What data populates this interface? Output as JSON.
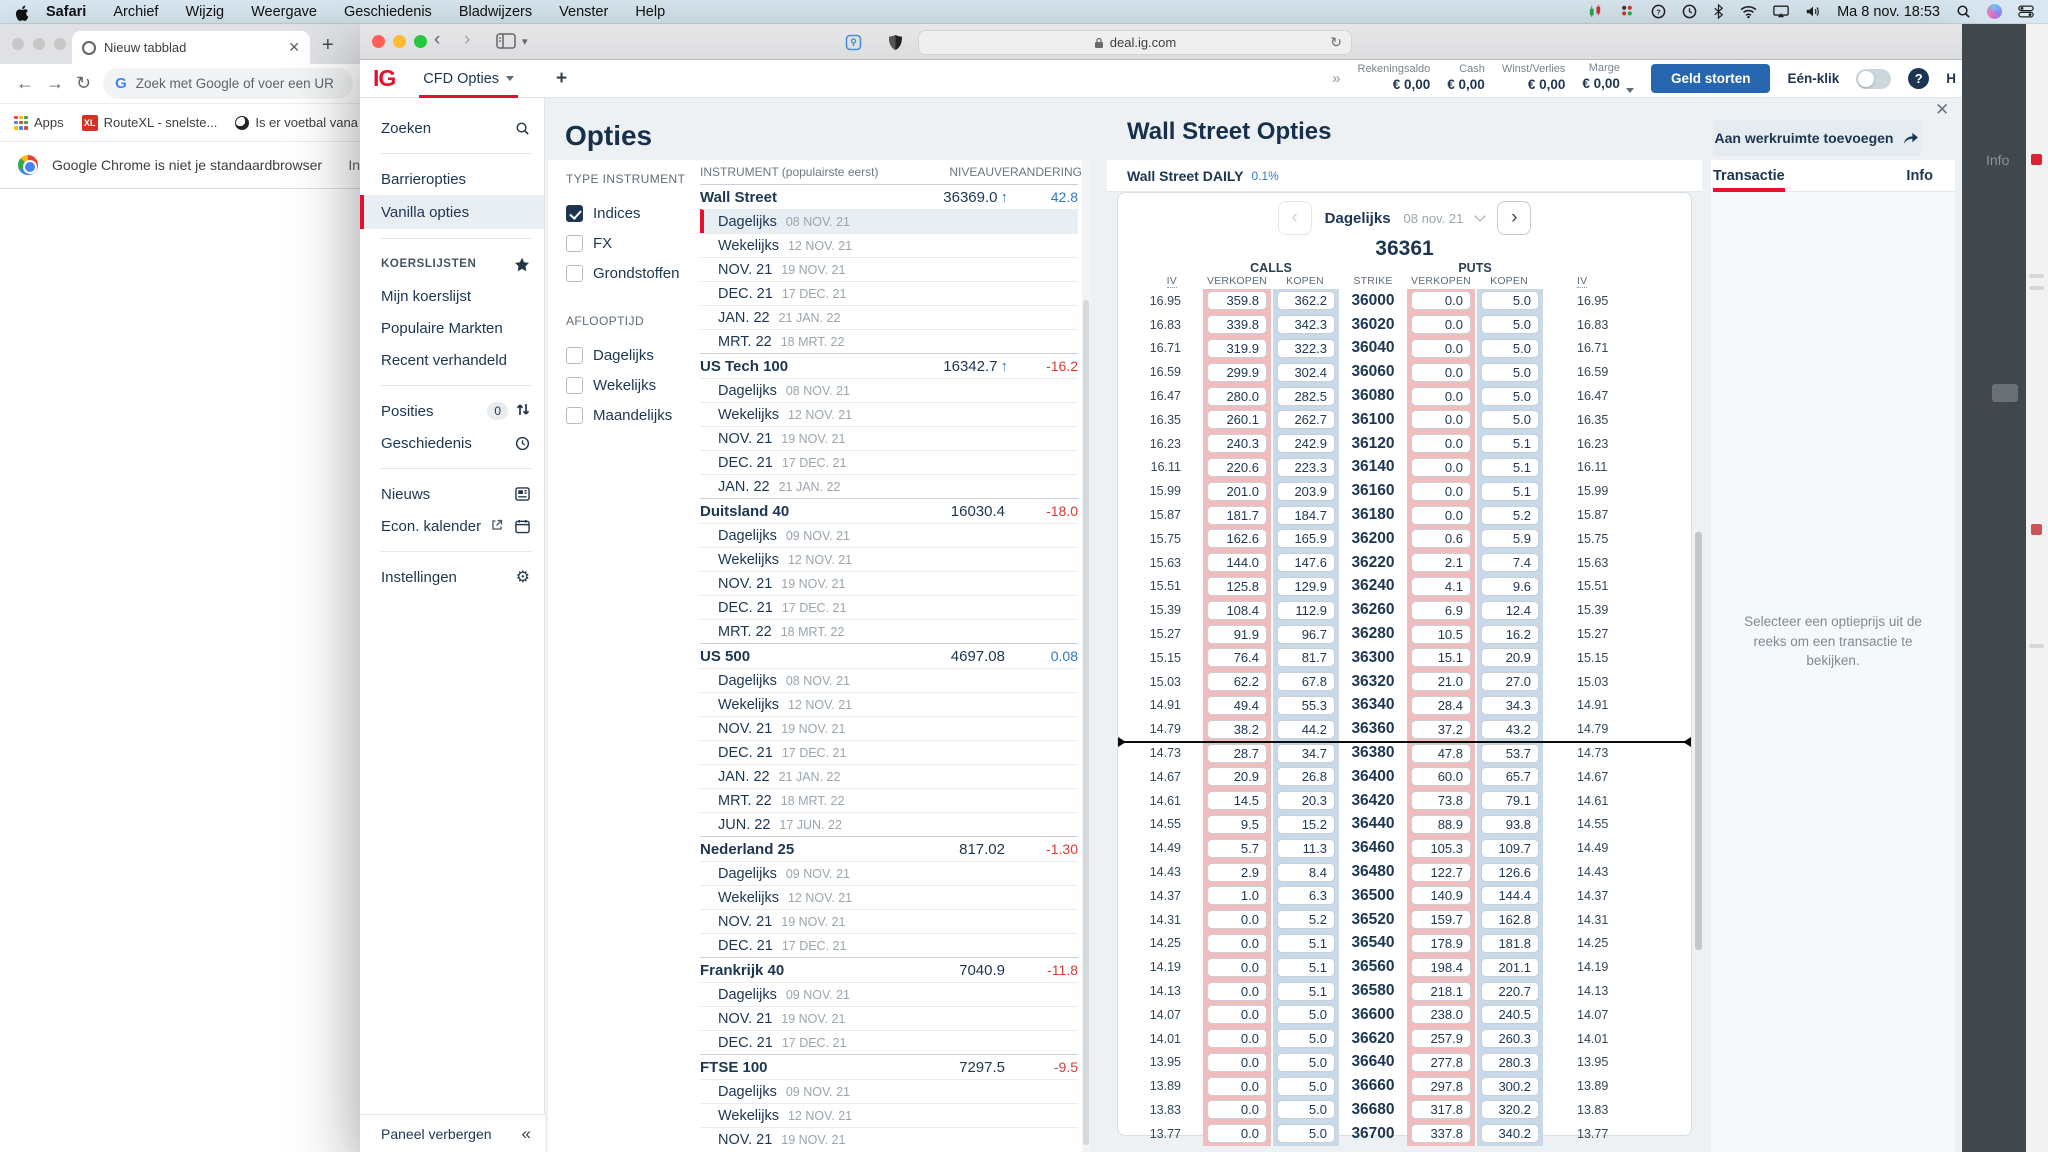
{
  "menu_bar": {
    "items": [
      "Safari",
      "Archief",
      "Wijzig",
      "Weergave",
      "Geschiedenis",
      "Bladwijzers",
      "Venster",
      "Help"
    ],
    "clock": "Ma 8 nov.  18:53"
  },
  "chrome_window": {
    "tab_title": "Nieuw tabblad",
    "address_placeholder": "Zoek met Google of voer een UR",
    "bookmarks": [
      "Apps",
      "RouteXL - snelste...",
      "Is er voetbal vana"
    ],
    "notification": "Google Chrome is niet je standaardbrowser",
    "notification_action": "In"
  },
  "safari": {
    "url": "deal.ig.com"
  },
  "ig_header": {
    "logo": "IG",
    "tab": "CFD Opties",
    "add_tab": "+",
    "overflow": "»",
    "balances": [
      {
        "label": "Rekeningsaldo",
        "value": "€ 0,00"
      },
      {
        "label": "Cash",
        "value": "€ 0,00"
      },
      {
        "label": "Winst/Verlies",
        "value": "€ 0,00"
      },
      {
        "label": "Marge",
        "value": "€ 0,00"
      }
    ],
    "deposit_button": "Geld storten",
    "one_click": "Eén-klik",
    "help": "H"
  },
  "sidebar": {
    "search": "Zoeken",
    "barrier": "Barrieropties",
    "vanilla": "Vanilla opties",
    "koerslijsten": "KOERSLIJSTEN",
    "mijn": "Mijn koerslijst",
    "populaire": "Populaire Markten",
    "recent": "Recent verhandeld",
    "posities": "Posities",
    "posities_count": "0",
    "geschiedenis": "Geschiedenis",
    "nieuws": "Nieuws",
    "econ": "Econ. kalender",
    "instellingen": "Instellingen",
    "paneel": "Paneel verbergen"
  },
  "opties_panel": {
    "title": "Opties",
    "filters": {
      "type_label": "TYPE INSTRUMENT",
      "type_options": [
        {
          "label": "Indices",
          "checked": true
        },
        {
          "label": "FX",
          "checked": false
        },
        {
          "label": "Grondstoffen",
          "checked": false
        }
      ],
      "expiry_label": "AFLOOPTIJD",
      "expiry_options": [
        {
          "label": "Dagelijks",
          "checked": false
        },
        {
          "label": "Wekelijks",
          "checked": false
        },
        {
          "label": "Maandelijks",
          "checked": false
        }
      ]
    },
    "list_headers": {
      "instrument": "INSTRUMENT (populairste eerst)",
      "level": "NIVEAU",
      "change": "VERANDERING"
    },
    "instruments": [
      {
        "name": "Wall Street",
        "level": "36369.0",
        "arrow": true,
        "change": "42.8",
        "dir": "pos",
        "expiries": [
          {
            "label": "Dagelijks",
            "date": "08 NOV. 21",
            "selected": true
          },
          {
            "label": "Wekelijks",
            "date": "12 NOV. 21"
          },
          {
            "label": "NOV. 21",
            "date": "19 NOV. 21"
          },
          {
            "label": "DEC. 21",
            "date": "17 DEC. 21"
          },
          {
            "label": "JAN. 22",
            "date": "21 JAN. 22"
          },
          {
            "label": "MRT. 22",
            "date": "18 MRT. 22"
          }
        ]
      },
      {
        "name": "US Tech 100",
        "level": "16342.7",
        "arrow": true,
        "change": "-16.2",
        "dir": "neg",
        "expiries": [
          {
            "label": "Dagelijks",
            "date": "08 NOV. 21"
          },
          {
            "label": "Wekelijks",
            "date": "12 NOV. 21"
          },
          {
            "label": "NOV. 21",
            "date": "19 NOV. 21"
          },
          {
            "label": "DEC. 21",
            "date": "17 DEC. 21"
          },
          {
            "label": "JAN. 22",
            "date": "21 JAN. 22"
          }
        ]
      },
      {
        "name": "Duitsland 40",
        "level": "16030.4",
        "arrow": false,
        "change": "-18.0",
        "dir": "neg",
        "expiries": [
          {
            "label": "Dagelijks",
            "date": "09 NOV. 21"
          },
          {
            "label": "Wekelijks",
            "date": "12 NOV. 21"
          },
          {
            "label": "NOV. 21",
            "date": "19 NOV. 21"
          },
          {
            "label": "DEC. 21",
            "date": "17 DEC. 21"
          },
          {
            "label": "MRT. 22",
            "date": "18 MRT. 22"
          }
        ]
      },
      {
        "name": "US 500",
        "level": "4697.08",
        "arrow": false,
        "change": "0.08",
        "dir": "pos",
        "expiries": [
          {
            "label": "Dagelijks",
            "date": "08 NOV. 21"
          },
          {
            "label": "Wekelijks",
            "date": "12 NOV. 21"
          },
          {
            "label": "NOV. 21",
            "date": "19 NOV. 21"
          },
          {
            "label": "DEC. 21",
            "date": "17 DEC. 21"
          },
          {
            "label": "JAN. 22",
            "date": "21 JAN. 22"
          },
          {
            "label": "MRT. 22",
            "date": "18 MRT. 22"
          },
          {
            "label": "JUN. 22",
            "date": "17 JUN. 22"
          }
        ]
      },
      {
        "name": "Nederland 25",
        "level": "817.02",
        "arrow": false,
        "change": "-1.30",
        "dir": "neg",
        "expiries": [
          {
            "label": "Dagelijks",
            "date": "09 NOV. 21"
          },
          {
            "label": "Wekelijks",
            "date": "12 NOV. 21"
          },
          {
            "label": "NOV. 21",
            "date": "19 NOV. 21"
          },
          {
            "label": "DEC. 21",
            "date": "17 DEC. 21"
          }
        ]
      },
      {
        "name": "Frankrijk 40",
        "level": "7040.9",
        "arrow": false,
        "change": "-11.8",
        "dir": "neg",
        "expiries": [
          {
            "label": "Dagelijks",
            "date": "09 NOV. 21"
          },
          {
            "label": "NOV. 21",
            "date": "19 NOV. 21"
          },
          {
            "label": "DEC. 21",
            "date": "17 DEC. 21"
          }
        ]
      },
      {
        "name": "FTSE 100",
        "level": "7297.5",
        "arrow": false,
        "change": "-9.5",
        "dir": "neg",
        "expiries": [
          {
            "label": "Dagelijks",
            "date": "09 NOV. 21"
          },
          {
            "label": "Wekelijks",
            "date": "12 NOV. 21"
          },
          {
            "label": "NOV. 21",
            "date": "19 NOV. 21"
          }
        ]
      }
    ]
  },
  "wallstreet_panel": {
    "title": "Wall Street Opties",
    "add_button": "Aan werkruimte toevoegen",
    "market_tab": {
      "name": "Wall Street DAILY",
      "change": "0.1%"
    },
    "tabs": {
      "transaction": "Transactie",
      "info": "Info"
    },
    "chain": {
      "nav": {
        "period": "Dagelijks",
        "date": "08 nov. 21"
      },
      "underlying_price": "36361",
      "groups": {
        "calls": "CALLS",
        "puts": "PUTS"
      },
      "columns": {
        "iv": "IV",
        "sell": "VERKOPEN",
        "buy": "KOPEN",
        "strike": "STRIKE"
      },
      "marker_after_index": 18,
      "rows": [
        [
          "16.95",
          "359.8",
          "362.2",
          "36000",
          "0.0",
          "5.0"
        ],
        [
          "16.83",
          "339.8",
          "342.3",
          "36020",
          "0.0",
          "5.0"
        ],
        [
          "16.71",
          "319.9",
          "322.3",
          "36040",
          "0.0",
          "5.0"
        ],
        [
          "16.59",
          "299.9",
          "302.4",
          "36060",
          "0.0",
          "5.0"
        ],
        [
          "16.47",
          "280.0",
          "282.5",
          "36080",
          "0.0",
          "5.0"
        ],
        [
          "16.35",
          "260.1",
          "262.7",
          "36100",
          "0.0",
          "5.0"
        ],
        [
          "16.23",
          "240.3",
          "242.9",
          "36120",
          "0.0",
          "5.1"
        ],
        [
          "16.11",
          "220.6",
          "223.3",
          "36140",
          "0.0",
          "5.1"
        ],
        [
          "15.99",
          "201.0",
          "203.9",
          "36160",
          "0.0",
          "5.1"
        ],
        [
          "15.87",
          "181.7",
          "184.7",
          "36180",
          "0.0",
          "5.2"
        ],
        [
          "15.75",
          "162.6",
          "165.9",
          "36200",
          "0.6",
          "5.9"
        ],
        [
          "15.63",
          "144.0",
          "147.6",
          "36220",
          "2.1",
          "7.4"
        ],
        [
          "15.51",
          "125.8",
          "129.9",
          "36240",
          "4.1",
          "9.6"
        ],
        [
          "15.39",
          "108.4",
          "112.9",
          "36260",
          "6.9",
          "12.4"
        ],
        [
          "15.27",
          "91.9",
          "96.7",
          "36280",
          "10.5",
          "16.2"
        ],
        [
          "15.15",
          "76.4",
          "81.7",
          "36300",
          "15.1",
          "20.9"
        ],
        [
          "15.03",
          "62.2",
          "67.8",
          "36320",
          "21.0",
          "27.0"
        ],
        [
          "14.91",
          "49.4",
          "55.3",
          "36340",
          "28.4",
          "34.3"
        ],
        [
          "14.79",
          "38.2",
          "44.2",
          "36360",
          "37.2",
          "43.2"
        ],
        [
          "14.73",
          "28.7",
          "34.7",
          "36380",
          "47.8",
          "53.7"
        ],
        [
          "14.67",
          "20.9",
          "26.8",
          "36400",
          "60.0",
          "65.7"
        ],
        [
          "14.61",
          "14.5",
          "20.3",
          "36420",
          "73.8",
          "79.1"
        ],
        [
          "14.55",
          "9.5",
          "15.2",
          "36440",
          "88.9",
          "93.8"
        ],
        [
          "14.49",
          "5.7",
          "11.3",
          "36460",
          "105.3",
          "109.7"
        ],
        [
          "14.43",
          "2.9",
          "8.4",
          "36480",
          "122.7",
          "126.6"
        ],
        [
          "14.37",
          "1.0",
          "6.3",
          "36500",
          "140.9",
          "144.4"
        ],
        [
          "14.31",
          "0.0",
          "5.2",
          "36520",
          "159.7",
          "162.8"
        ],
        [
          "14.25",
          "0.0",
          "5.1",
          "36540",
          "178.9",
          "181.8"
        ],
        [
          "14.19",
          "0.0",
          "5.1",
          "36560",
          "198.4",
          "201.1"
        ],
        [
          "14.13",
          "0.0",
          "5.1",
          "36580",
          "218.1",
          "220.7"
        ],
        [
          "14.07",
          "0.0",
          "5.0",
          "36600",
          "238.0",
          "240.5"
        ],
        [
          "14.01",
          "0.0",
          "5.0",
          "36620",
          "257.9",
          "260.3"
        ],
        [
          "13.95",
          "0.0",
          "5.0",
          "36640",
          "277.8",
          "280.3"
        ],
        [
          "13.89",
          "0.0",
          "5.0",
          "36660",
          "297.8",
          "300.2"
        ],
        [
          "13.83",
          "0.0",
          "5.0",
          "36680",
          "317.8",
          "320.2"
        ],
        [
          "13.77",
          "0.0",
          "5.0",
          "36700",
          "337.8",
          "340.2"
        ]
      ]
    },
    "transaction_placeholder": "Selecteer een optieprijs uit de reeks om een transactie te bekijken."
  },
  "background_window": {
    "label": "Info"
  },
  "colors": {
    "brand_red": "#e3132e",
    "navy": "#1c3652",
    "blue_pos": "#3277c4",
    "red_neg": "#d93a35",
    "sell_strip": "#f1bcbe",
    "buy_strip": "#c8dae9",
    "deposit_blue": "#2767b0"
  }
}
